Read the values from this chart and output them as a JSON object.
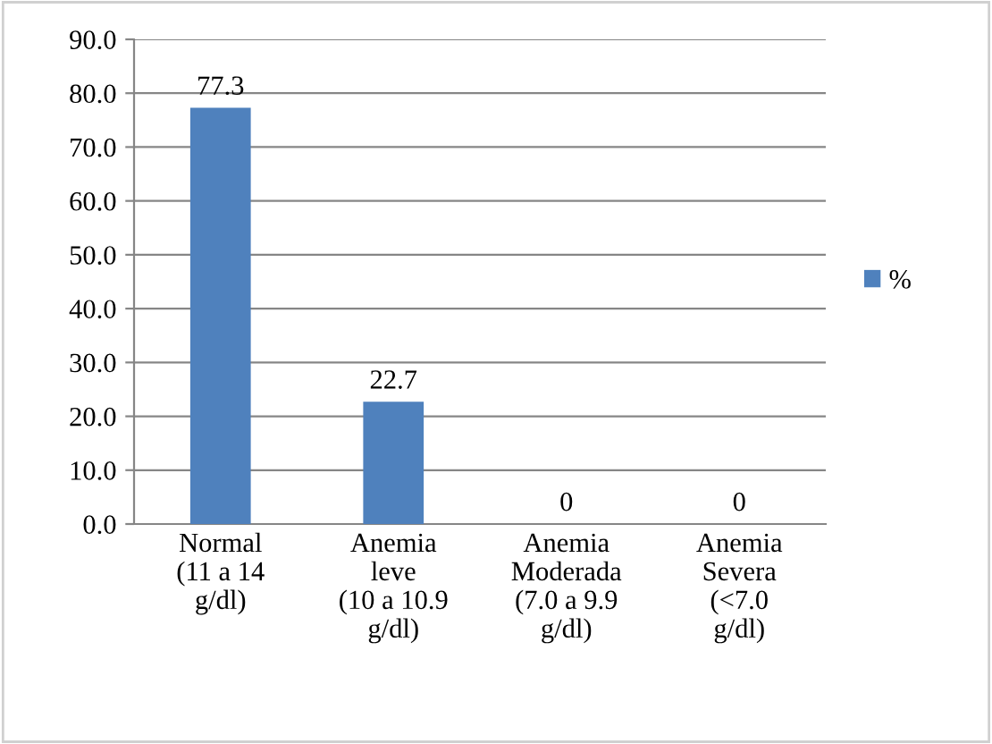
{
  "chart_data": {
    "type": "bar",
    "categories": [
      "Normal\n(11 a 14\ng/dl)",
      "Anemia\nleve\n(10 a 10.9\ng/dl)",
      "Anemia\nModerada\n(7.0 a 9.9\ng/dl)",
      "Anemia\nSevera\n(<7.0\ng/dl)"
    ],
    "series": [
      {
        "name": "%",
        "color": "#4f81bd",
        "values": [
          77.3,
          22.7,
          0,
          0
        ],
        "value_labels": [
          "77.3",
          "22.7",
          "0",
          "0"
        ]
      }
    ],
    "ylim": [
      0,
      90
    ],
    "yticks": [
      {
        "value": 0,
        "label": "0.0"
      },
      {
        "value": 10,
        "label": "10.0"
      },
      {
        "value": 20,
        "label": "20.0"
      },
      {
        "value": 30,
        "label": "30.0"
      },
      {
        "value": 40,
        "label": "40.0"
      },
      {
        "value": 50,
        "label": "50.0"
      },
      {
        "value": 60,
        "label": "60.0"
      },
      {
        "value": 70,
        "label": "70.0"
      },
      {
        "value": 80,
        "label": "80.0"
      },
      {
        "value": 90,
        "label": "90.0"
      }
    ],
    "grid": "y",
    "legend": "right"
  }
}
